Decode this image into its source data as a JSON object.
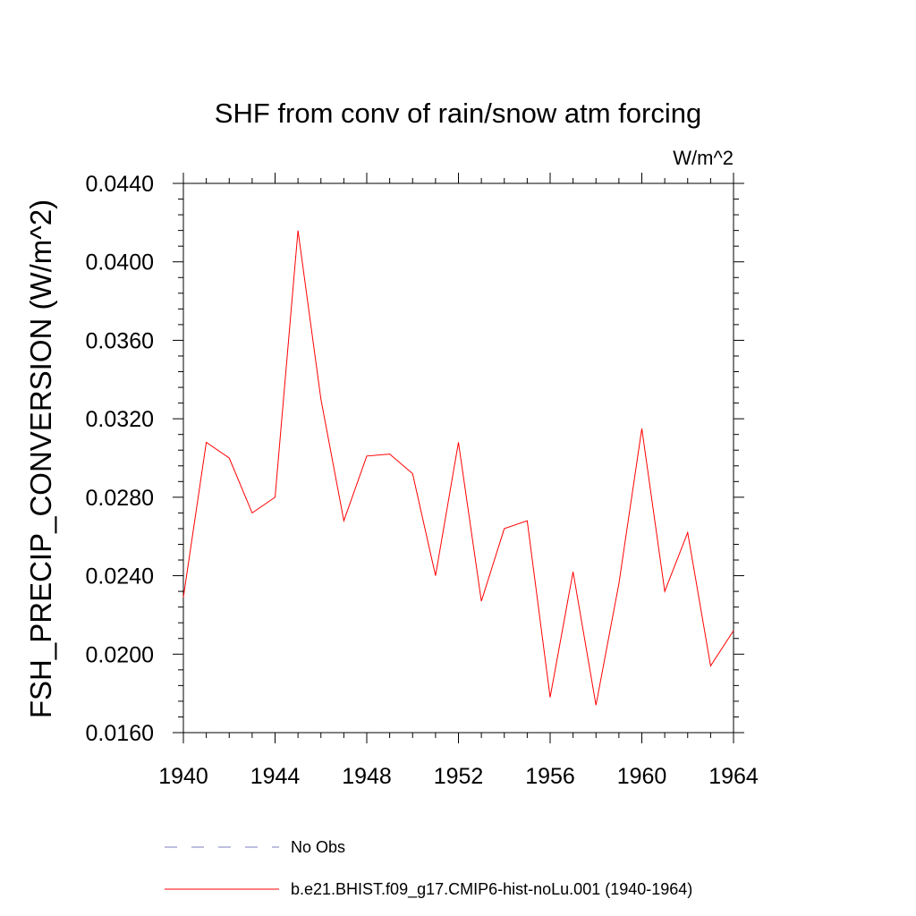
{
  "chart_data": {
    "type": "line",
    "title": "SHF from conv of rain/snow atm forcing",
    "units": "W/m^2",
    "ylabel": "FSH_PRECIP_CONVERSION  (W/m^2)",
    "xlabel": "",
    "xlim": [
      1940,
      1964
    ],
    "ylim": [
      0.016,
      0.044
    ],
    "x_ticks": [
      1940,
      1944,
      1948,
      1952,
      1956,
      1960,
      1964
    ],
    "x_tick_labels": [
      "1940",
      "1944",
      "1948",
      "1952",
      "1956",
      "1960",
      "1964"
    ],
    "y_ticks": [
      0.016,
      0.02,
      0.024,
      0.028,
      0.032,
      0.036,
      0.04,
      0.044
    ],
    "y_tick_labels": [
      "0.0160",
      "0.0200",
      "0.0240",
      "0.0280",
      "0.0320",
      "0.0360",
      "0.0400",
      "0.0440"
    ],
    "grid": false,
    "legend_position": "bottom",
    "series": [
      {
        "name": "No Obs",
        "color": "#7f7fbf",
        "dash": "dashed",
        "x": [],
        "y": []
      },
      {
        "name": "b.e21.BHIST.f09_g17.CMIP6-hist-noLu.001 (1940-1964)",
        "color": "#ff0000",
        "dash": "solid",
        "x": [
          1940,
          1941,
          1942,
          1943,
          1944,
          1945,
          1946,
          1947,
          1948,
          1949,
          1950,
          1951,
          1952,
          1953,
          1954,
          1955,
          1956,
          1957,
          1958,
          1959,
          1960,
          1961,
          1962,
          1963,
          1964
        ],
        "y": [
          0.0229,
          0.0308,
          0.03,
          0.0272,
          0.028,
          0.0416,
          0.033,
          0.0268,
          0.0301,
          0.0302,
          0.0292,
          0.024,
          0.0308,
          0.0227,
          0.0264,
          0.0268,
          0.0178,
          0.0242,
          0.0174,
          0.0236,
          0.0315,
          0.0232,
          0.0262,
          0.0194,
          0.0212
        ]
      }
    ]
  }
}
